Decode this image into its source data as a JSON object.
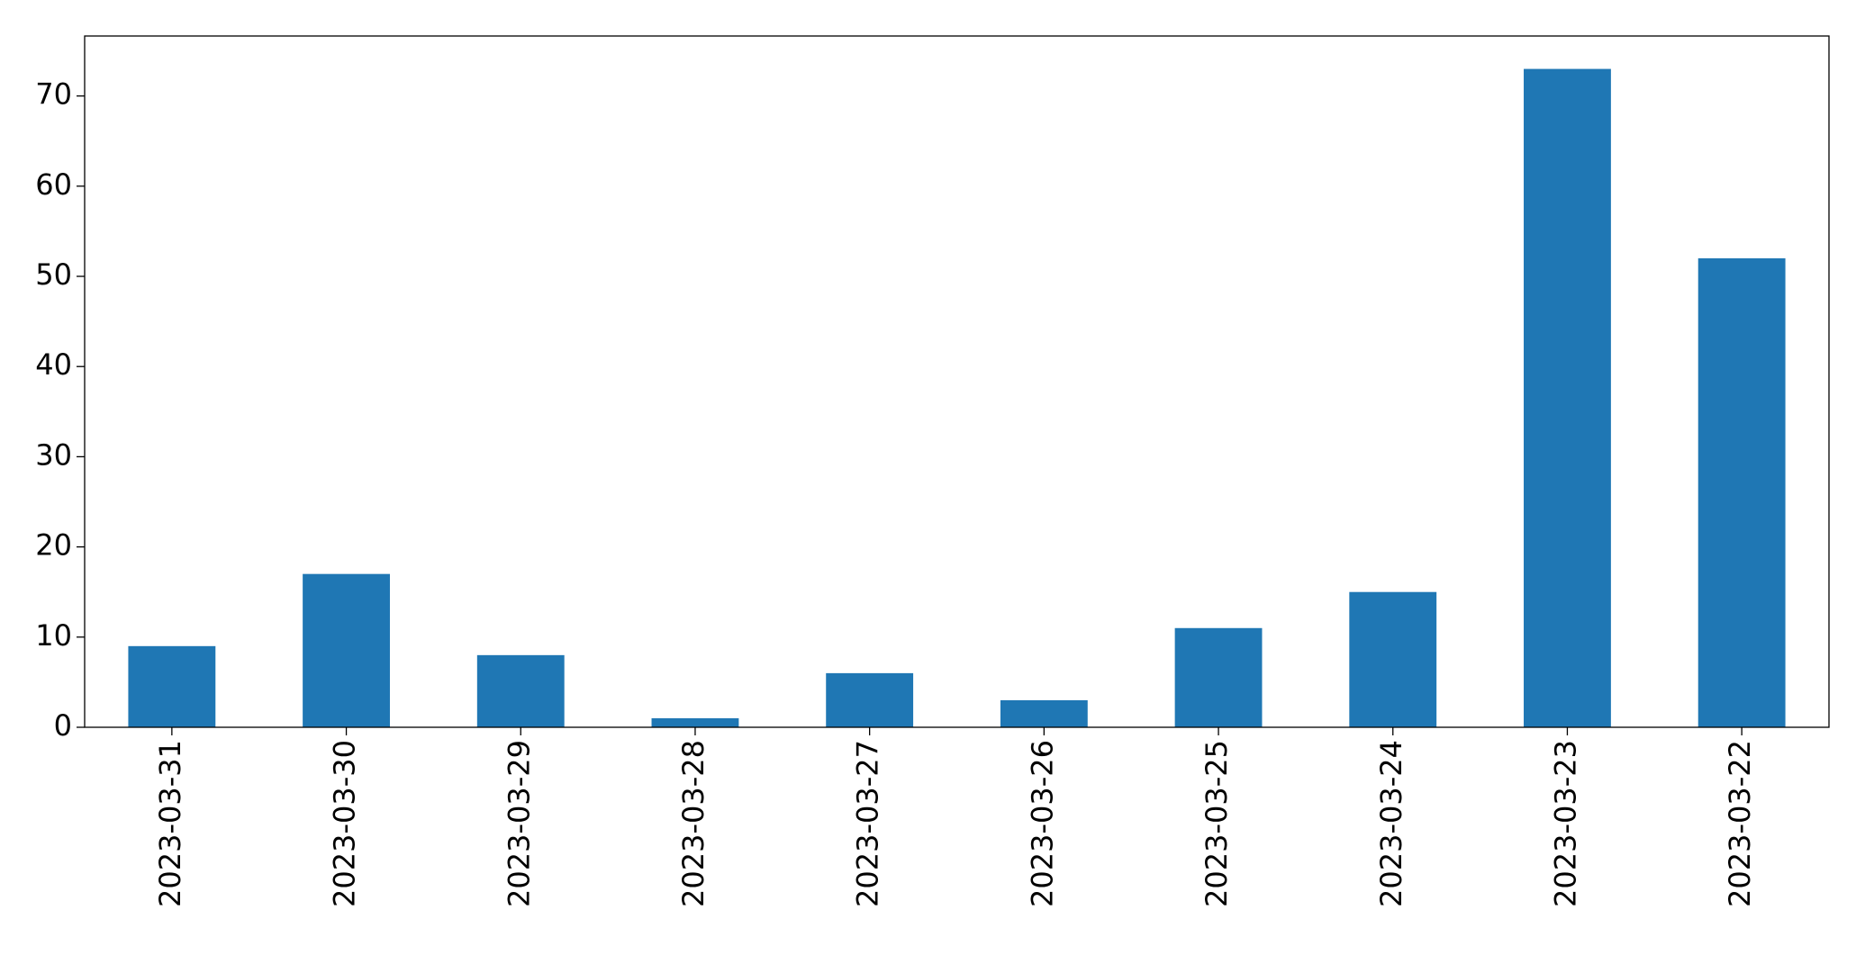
{
  "chart_data": {
    "type": "bar",
    "categories": [
      "2023-03-31",
      "2023-03-30",
      "2023-03-29",
      "2023-03-28",
      "2023-03-27",
      "2023-03-26",
      "2023-03-25",
      "2023-03-24",
      "2023-03-23",
      "2023-03-22"
    ],
    "values": [
      9,
      17,
      8,
      1,
      6,
      3,
      11,
      15,
      73,
      52
    ],
    "color": "#1f77b4",
    "ylim": [
      0,
      76.65
    ],
    "yticks": [
      0,
      10,
      20,
      30,
      40,
      50,
      60,
      70
    ],
    "grid": false
  }
}
